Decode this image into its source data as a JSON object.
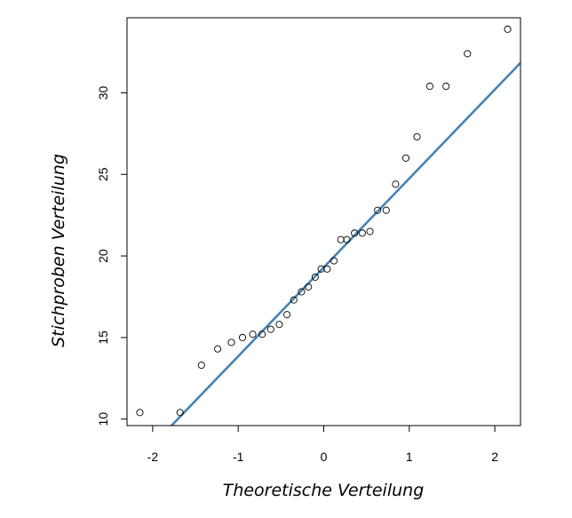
{
  "chart_data": {
    "type": "scatter",
    "title": "",
    "xlabel": "Theoretische Verteilung",
    "ylabel": "Stichproben Verteilung",
    "xlim": [
      -2.3,
      2.3
    ],
    "ylim": [
      9.6,
      34.6
    ],
    "x_ticks": [
      -2,
      -1,
      0,
      1,
      2
    ],
    "y_ticks": [
      10,
      15,
      20,
      25,
      30
    ],
    "grid": false,
    "legend": "none",
    "points": [
      {
        "x": -2.15,
        "y": 10.4
      },
      {
        "x": -1.68,
        "y": 10.4
      },
      {
        "x": -1.43,
        "y": 13.3
      },
      {
        "x": -1.24,
        "y": 14.3
      },
      {
        "x": -1.08,
        "y": 14.7
      },
      {
        "x": -0.95,
        "y": 15.0
      },
      {
        "x": -0.83,
        "y": 15.2
      },
      {
        "x": -0.72,
        "y": 15.2
      },
      {
        "x": -0.62,
        "y": 15.5
      },
      {
        "x": -0.52,
        "y": 15.8
      },
      {
        "x": -0.43,
        "y": 16.4
      },
      {
        "x": -0.35,
        "y": 17.3
      },
      {
        "x": -0.26,
        "y": 17.8
      },
      {
        "x": -0.18,
        "y": 18.1
      },
      {
        "x": -0.1,
        "y": 18.7
      },
      {
        "x": -0.03,
        "y": 19.2
      },
      {
        "x": 0.04,
        "y": 19.2
      },
      {
        "x": 0.12,
        "y": 19.7
      },
      {
        "x": 0.2,
        "y": 21.0
      },
      {
        "x": 0.27,
        "y": 21.0
      },
      {
        "x": 0.36,
        "y": 21.4
      },
      {
        "x": 0.45,
        "y": 21.4
      },
      {
        "x": 0.54,
        "y": 21.5
      },
      {
        "x": 0.63,
        "y": 22.8
      },
      {
        "x": 0.73,
        "y": 22.8
      },
      {
        "x": 0.84,
        "y": 24.4
      },
      {
        "x": 0.96,
        "y": 26.0
      },
      {
        "x": 1.09,
        "y": 27.3
      },
      {
        "x": 1.24,
        "y": 30.4
      },
      {
        "x": 1.43,
        "y": 30.4
      },
      {
        "x": 1.68,
        "y": 32.4
      },
      {
        "x": 2.15,
        "y": 33.9
      }
    ],
    "reference_line": {
      "intercept": 19.3,
      "slope": 5.45,
      "color": "#4682b4"
    }
  }
}
